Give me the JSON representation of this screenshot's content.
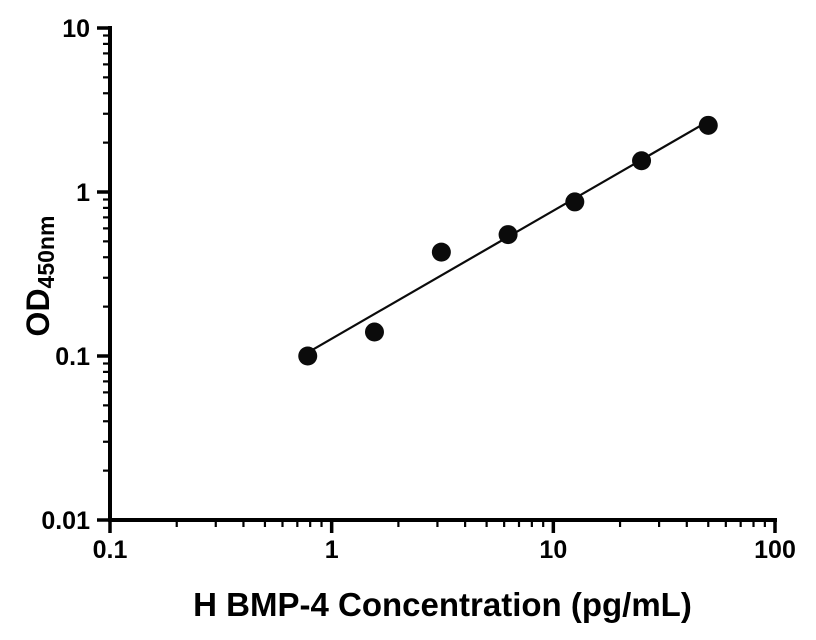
{
  "chart_data": {
    "type": "scatter",
    "title": "",
    "xlabel": "H BMP-4 Concentration (pg/mL)",
    "ylabel_main": "OD",
    "ylabel_sub": "450nm",
    "xscale": "log",
    "yscale": "log",
    "xlim": [
      0.1,
      100
    ],
    "ylim": [
      0.01,
      10
    ],
    "grid": false,
    "legend": "none",
    "x_ticks": {
      "values": [
        0.1,
        1,
        10,
        100
      ],
      "labels": [
        "0.1",
        "1",
        "10",
        "100"
      ]
    },
    "y_ticks": {
      "values": [
        0.01,
        0.1,
        1,
        10
      ],
      "labels": [
        "0.01",
        "0.1",
        "1",
        "10"
      ]
    },
    "series": [
      {
        "name": "fit-line",
        "type": "line",
        "x": [
          0.78,
          50
        ],
        "y": [
          0.105,
          2.7
        ]
      },
      {
        "name": "standard-points",
        "type": "scatter",
        "x": [
          0.78,
          1.56,
          3.125,
          6.25,
          12.5,
          25,
          50
        ],
        "y": [
          0.1,
          0.14,
          0.43,
          0.55,
          0.87,
          1.55,
          2.55
        ]
      }
    ],
    "colors": {
      "points": "#0b0b0b",
      "line": "#0b0b0b",
      "axis": "#000000",
      "text": "#000000",
      "background": "#ffffff"
    }
  }
}
